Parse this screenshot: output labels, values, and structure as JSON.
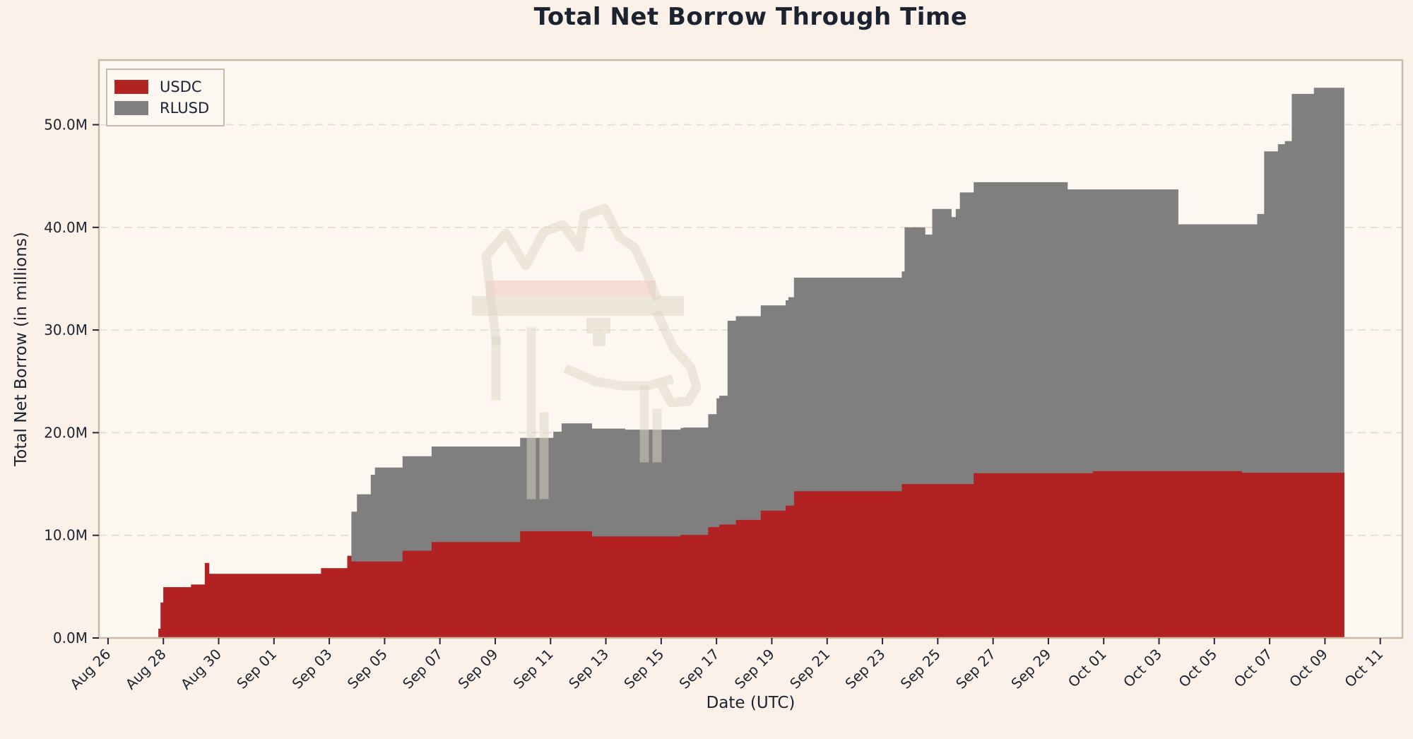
{
  "title": "Total Net Borrow Through Time",
  "xlabel": "Date (UTC)",
  "ylabel": "Total Net Borrow (in millions)",
  "legend": [
    {
      "label": "USDC",
      "color": "#b22222"
    },
    {
      "label": "RLUSD",
      "color": "#7f7f7f"
    }
  ],
  "colors": {
    "figure_bg": "#fbf1e8",
    "axes_bg": "#fdf7f1",
    "spine": "#c9bca6",
    "grid": "#e4dbcb",
    "text": "#1c2330",
    "tick_mark": "#262635",
    "usdc": "#b22222",
    "rlusd": "#7f7f7f",
    "watermark_stroke": "#ded5c6",
    "watermark_band": "#eebbb2"
  },
  "chart_data": {
    "type": "area",
    "stacked": true,
    "title": "Total Net Borrow Through Time",
    "xlabel": "Date (UTC)",
    "ylabel": "Total Net Borrow (in millions)",
    "grid": "horizontal-dashed",
    "legend_position": "upper-left",
    "x_unit": "days since Aug 26 00:00 UTC",
    "xlim": [
      -0.33,
      46.8
    ],
    "ylim": [
      0,
      56.3
    ],
    "x_ticks": {
      "labels": [
        "Aug 26",
        "Aug 28",
        "Aug 30",
        "Sep 01",
        "Sep 03",
        "Sep 05",
        "Sep 07",
        "Sep 09",
        "Sep 11",
        "Sep 13",
        "Sep 15",
        "Sep 17",
        "Sep 19",
        "Sep 21",
        "Sep 23",
        "Sep 25",
        "Sep 27",
        "Sep 29",
        "Oct 01",
        "Oct 03",
        "Oct 05",
        "Oct 07",
        "Oct 09",
        "Oct 11"
      ],
      "days": [
        0,
        2,
        4,
        6,
        8,
        10,
        12,
        14,
        16,
        18,
        20,
        22,
        24,
        26,
        28,
        30,
        32,
        34,
        36,
        38,
        40,
        42,
        44,
        46
      ]
    },
    "y_ticks": {
      "labels": [
        "0.0M",
        "10.0M",
        "20.0M",
        "30.0M",
        "40.0M",
        "50.0M"
      ],
      "values": [
        0,
        10,
        20,
        30,
        40,
        50
      ]
    },
    "data_end_day": 44.7,
    "series": [
      {
        "name": "USDC",
        "color": "#b22222",
        "interpolation": "step-after",
        "points_day_value": [
          [
            -0.33,
            0
          ],
          [
            1.82,
            0.9
          ],
          [
            1.9,
            3.45
          ],
          [
            2.0,
            4.95
          ],
          [
            3.0,
            5.2
          ],
          [
            3.5,
            7.3
          ],
          [
            3.66,
            6.25
          ],
          [
            7.7,
            6.8
          ],
          [
            8.65,
            8.0
          ],
          [
            8.8,
            7.45
          ],
          [
            10.65,
            8.5
          ],
          [
            11.7,
            9.35
          ],
          [
            14.9,
            10.4
          ],
          [
            17.5,
            9.9
          ],
          [
            20.7,
            10.05
          ],
          [
            21.7,
            10.8
          ],
          [
            22.1,
            11.05
          ],
          [
            22.7,
            11.5
          ],
          [
            23.6,
            12.4
          ],
          [
            24.5,
            12.9
          ],
          [
            24.8,
            14.3
          ],
          [
            28.7,
            15.0
          ],
          [
            31.3,
            16.05
          ],
          [
            35.6,
            16.25
          ],
          [
            41.0,
            16.1
          ],
          [
            44.7,
            16.1
          ]
        ]
      },
      {
        "name": "RLUSD",
        "color": "#7f7f7f",
        "interpolation": "step-after",
        "points_day_value": [
          [
            -0.33,
            0
          ],
          [
            8.8,
            4.85
          ],
          [
            9.0,
            6.55
          ],
          [
            9.5,
            8.45
          ],
          [
            9.65,
            9.15
          ],
          [
            10.65,
            9.2
          ],
          [
            11.7,
            9.3
          ],
          [
            14.9,
            9.1
          ],
          [
            16.1,
            9.7
          ],
          [
            16.4,
            10.5
          ],
          [
            18.7,
            10.4
          ],
          [
            20.8,
            10.45
          ],
          [
            21.7,
            11.0
          ],
          [
            22.0,
            12.55
          ],
          [
            22.4,
            19.85
          ],
          [
            23.6,
            20.0
          ],
          [
            24.6,
            20.3
          ],
          [
            24.8,
            20.8
          ],
          [
            28.7,
            20.7
          ],
          [
            28.8,
            25.0
          ],
          [
            29.55,
            24.3
          ],
          [
            29.8,
            26.8
          ],
          [
            30.5,
            26.0
          ],
          [
            30.65,
            26.8
          ],
          [
            30.8,
            28.4
          ],
          [
            31.3,
            28.35
          ],
          [
            34.7,
            27.65
          ],
          [
            35.6,
            27.45
          ],
          [
            38.7,
            24.05
          ],
          [
            41.0,
            24.2
          ],
          [
            41.55,
            25.2
          ],
          [
            41.8,
            31.3
          ],
          [
            42.3,
            32.0
          ],
          [
            42.55,
            32.3
          ],
          [
            42.8,
            36.9
          ],
          [
            43.6,
            37.5
          ],
          [
            44.7,
            37.5
          ]
        ]
      }
    ]
  }
}
